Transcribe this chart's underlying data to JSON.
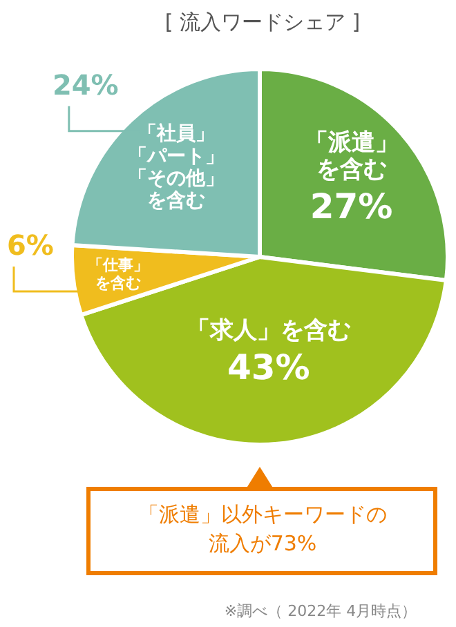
{
  "chart_data": {
    "type": "pie",
    "title": "[ 流入ワードシェア ]",
    "categories": [
      "「派遣」を含む",
      "「求人」を含む",
      "「仕事」を含む",
      "「社員」「パート」「その他」を含む"
    ],
    "values": [
      27,
      43,
      6,
      24
    ],
    "colors": [
      "#6aae45",
      "#a0c11e",
      "#f0bd1e",
      "#7fbfb2"
    ],
    "value_labels": [
      "27%",
      "43%",
      "6%",
      "24%"
    ],
    "annotations": [
      "「派遣」以外キーワードの流入が73%",
      "※調べ（ 2022年 4月時点）"
    ]
  }
}
